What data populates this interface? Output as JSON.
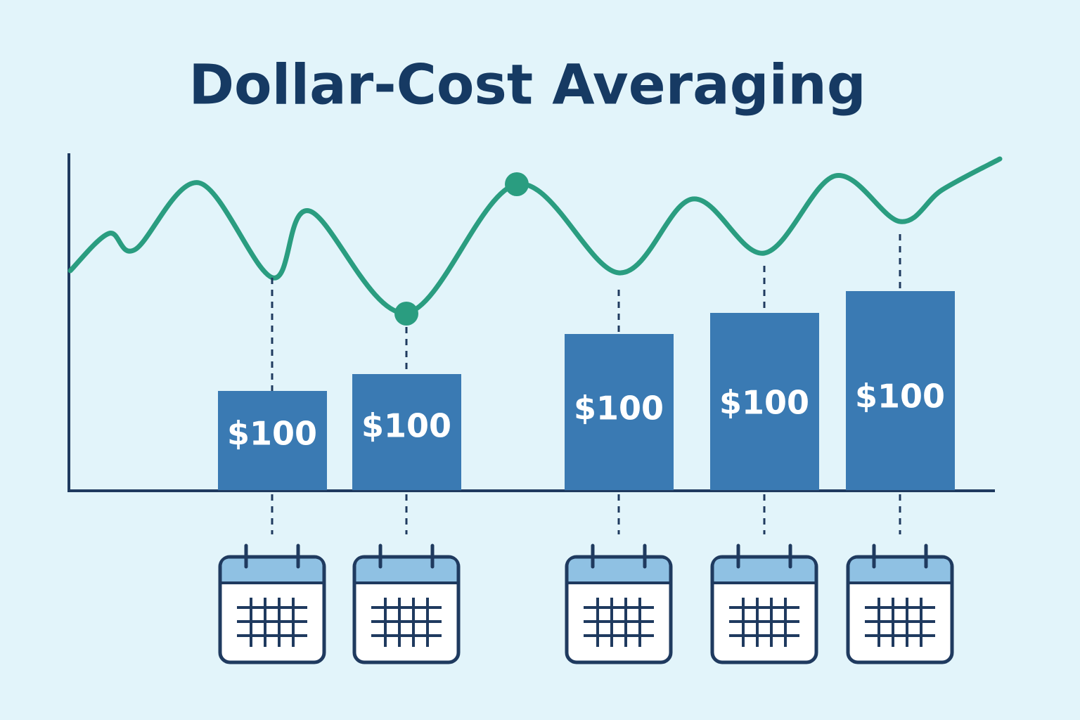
{
  "title": "Dollar-Cost Averaging",
  "bars": [
    "$100",
    "$100",
    "$100",
    "$100",
    "$100"
  ]
}
